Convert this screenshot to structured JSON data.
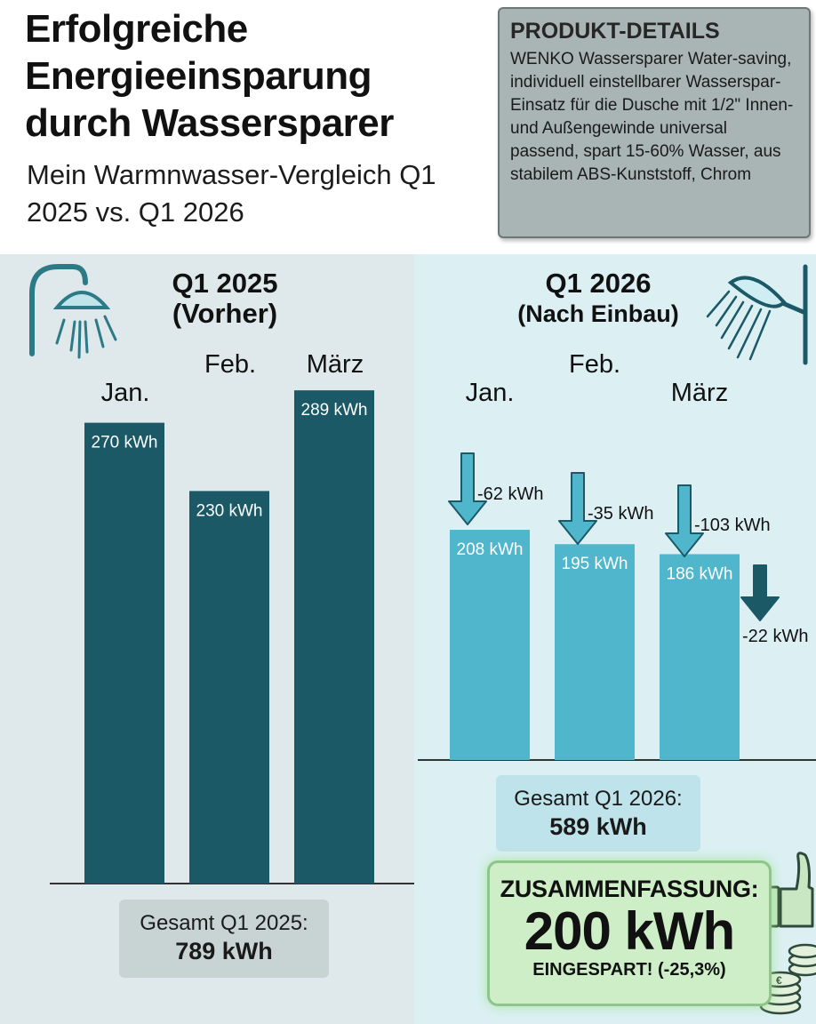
{
  "header": {
    "title": "Erfolgreiche Energieeinsparung durch Wassersparer",
    "subtitle": "Mein Warmnwasser-Vergleich Q1 2025 vs. Q1 2026"
  },
  "details": {
    "heading": "PRODUKT-DETAILS",
    "text": "WENKO Wassersparer Water-saving, individuell einstellbarer Wasserspar-Einsatz für die Dusche mit 1/2\" Innen- und Außengewinde universal passend, spart 15-60% Wasser, aus stabilem ABS-Kunststoff, Chrom"
  },
  "left_panel": {
    "title_line1": "Q1 2025",
    "title_line2": "(Vorher)",
    "total_label": "Gesamt Q1 2025:",
    "total_value": "789 kWh"
  },
  "right_panel": {
    "title_line1": "Q1 2026",
    "title_line2": "(Nach Einbau)",
    "total_label": "Gesamt Q1 2026:",
    "total_value": "589 kWh"
  },
  "summary": {
    "heading": "ZUSAMMENFASSUNG:",
    "value": "200 kWh",
    "sub": "EINGESPART! (-25,3%)"
  },
  "colors": {
    "bar_2025": "#1b5966",
    "bar_2026": "#4fb6cc",
    "arrow": "#4fb6cc",
    "arrow_dark": "#1b5966"
  },
  "icons": [
    "shower-head-icon",
    "hand-shower-icon",
    "thumbs-up-icon",
    "euro-coins-icon"
  ],
  "chart_data": {
    "type": "bar",
    "unit": "kWh",
    "series": [
      {
        "name": "Q1 2025 (Vorher)",
        "categories": [
          "Jan.",
          "Feb.",
          "März"
        ],
        "values": [
          270,
          230,
          289
        ],
        "value_labels": [
          "270 kWh",
          "230 kWh",
          "289 kWh"
        ]
      },
      {
        "name": "Q1 2026 (Nach Einbau)",
        "categories": [
          "Jan.",
          "Feb.",
          "März"
        ],
        "values": [
          208,
          195,
          186
        ],
        "value_labels": [
          "208 kWh",
          "195 kWh",
          "186 kWh"
        ],
        "changes": [
          "-62 kWh",
          "-35 kWh",
          "-103 kWh"
        ]
      }
    ],
    "extra_annotation": "-22 kWh"
  }
}
